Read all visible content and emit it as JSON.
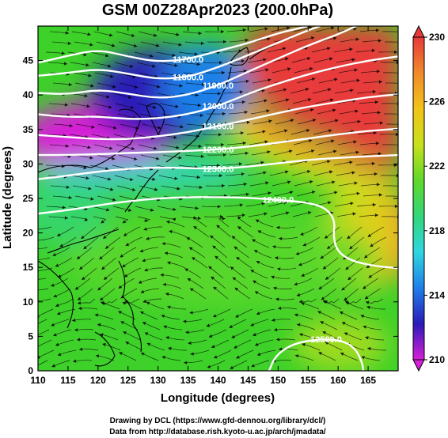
{
  "chart_data": {
    "type": "heatmap",
    "title": "GSM 00Z28Apr2023 (200.0hPa)",
    "xlabel": "Longitude (degrees)",
    "ylabel": "Latitude  (degrees)",
    "xlim": [
      110,
      170
    ],
    "ylim": [
      0,
      50
    ],
    "xticks": [
      "110",
      "115",
      "120",
      "125",
      "130",
      "135",
      "140",
      "145",
      "150",
      "155",
      "160",
      "165"
    ],
    "yticks": [
      "0",
      "5",
      "10",
      "15",
      "20",
      "25",
      "30",
      "35",
      "40",
      "45"
    ],
    "colorbar": {
      "min": 210,
      "max": 230,
      "ticks": [
        "210",
        "214",
        "218",
        "222",
        "226",
        "230"
      ],
      "colors": [
        "#d81fd8",
        "#2a1ab8",
        "#1e7fe8",
        "#2fd6e0",
        "#33d67a",
        "#5fd82a",
        "#c8e01c",
        "#f2c418",
        "#f08a2a",
        "#e83a3a"
      ]
    },
    "contours": [
      {
        "label": "11700.0",
        "points": [
          [
            110,
            44.7
          ],
          [
            115,
            45.7
          ],
          [
            120,
            46.6
          ],
          [
            125,
            45.6
          ],
          [
            130,
            44.8
          ],
          [
            135,
            45.2
          ],
          [
            140,
            46.4
          ],
          [
            145,
            47.5
          ],
          [
            150,
            49
          ],
          [
            155,
            50
          ]
        ]
      },
      {
        "label": "11800.0",
        "points": [
          [
            110,
            42.8
          ],
          [
            115,
            43.2
          ],
          [
            120,
            43.8
          ],
          [
            125,
            43.1
          ],
          [
            130,
            42.3
          ],
          [
            135,
            42.6
          ],
          [
            140,
            44
          ],
          [
            145,
            45.8
          ],
          [
            150,
            47.6
          ],
          [
            155,
            49.4
          ],
          [
            157,
            50
          ]
        ]
      },
      {
        "label": "11900.0",
        "points": [
          [
            110,
            40.3
          ],
          [
            115,
            40.1
          ],
          [
            120,
            40.8
          ],
          [
            125,
            40.2
          ],
          [
            130,
            39.5
          ],
          [
            135,
            40
          ],
          [
            140,
            41.4
          ],
          [
            145,
            43.4
          ],
          [
            150,
            45.3
          ],
          [
            155,
            47.2
          ],
          [
            160,
            48.8
          ],
          [
            163,
            50
          ]
        ]
      },
      {
        "label": "12000.0",
        "points": [
          [
            110,
            37.2
          ],
          [
            115,
            36.8
          ],
          [
            120,
            36.9
          ],
          [
            125,
            36.5
          ],
          [
            130,
            36.6
          ],
          [
            135,
            37.2
          ],
          [
            140,
            38.4
          ],
          [
            145,
            40.2
          ],
          [
            150,
            41.7
          ],
          [
            155,
            43
          ],
          [
            160,
            44.1
          ],
          [
            165,
            45
          ],
          [
            170,
            45.6
          ]
        ]
      },
      {
        "label": "12100.0",
        "points": [
          [
            110,
            34.2
          ],
          [
            115,
            33.9
          ],
          [
            120,
            33.6
          ],
          [
            125,
            33.6
          ],
          [
            130,
            34
          ],
          [
            135,
            34.6
          ],
          [
            140,
            35.5
          ],
          [
            145,
            36.4
          ],
          [
            150,
            37.4
          ],
          [
            155,
            38.3
          ],
          [
            160,
            39
          ],
          [
            165,
            39.7
          ],
          [
            170,
            40.1
          ]
        ]
      },
      {
        "label": "12200.0",
        "points": [
          [
            110,
            31.3
          ],
          [
            115,
            31.3
          ],
          [
            120,
            31.4
          ],
          [
            125,
            31.6
          ],
          [
            130,
            31.7
          ],
          [
            135,
            31.9
          ],
          [
            140,
            32.1
          ],
          [
            145,
            32.5
          ],
          [
            150,
            33.1
          ],
          [
            155,
            33.7
          ],
          [
            160,
            34.3
          ],
          [
            165,
            34.8
          ],
          [
            170,
            35.1
          ]
        ]
      },
      {
        "label": "12300.0",
        "points": [
          [
            110,
            27.8
          ],
          [
            115,
            28.3
          ],
          [
            120,
            28.9
          ],
          [
            125,
            29.3
          ],
          [
            130,
            29.5
          ],
          [
            135,
            29.4
          ],
          [
            140,
            29.3
          ],
          [
            145,
            29.6
          ],
          [
            150,
            30.1
          ],
          [
            155,
            30.6
          ],
          [
            160,
            30.9
          ],
          [
            165,
            31.1
          ],
          [
            170,
            31.3
          ]
        ]
      },
      {
        "label": "12400.0",
        "points": [
          [
            110,
            22.8
          ],
          [
            115,
            23.3
          ],
          [
            120,
            24
          ],
          [
            125,
            24.6
          ],
          [
            130,
            25
          ],
          [
            135,
            25.2
          ],
          [
            140,
            25.2
          ],
          [
            145,
            25.1
          ],
          [
            150,
            24.8
          ],
          [
            155,
            24.4
          ],
          [
            158,
            23.6
          ],
          [
            159.5,
            21.8
          ],
          [
            159.2,
            19.5
          ],
          [
            159.8,
            17.4
          ],
          [
            162,
            16
          ],
          [
            166,
            15.2
          ],
          [
            170,
            14.9
          ]
        ]
      },
      {
        "label": "12500.0",
        "points": [
          [
            148.5,
            0
          ],
          [
            149.5,
            2.1
          ],
          [
            152,
            3.7
          ],
          [
            155,
            4.4
          ],
          [
            158,
            4.6
          ],
          [
            161,
            4.3
          ],
          [
            163,
            3.1
          ],
          [
            164,
            1.2
          ],
          [
            164.2,
            0
          ]
        ]
      }
    ]
  }
}
